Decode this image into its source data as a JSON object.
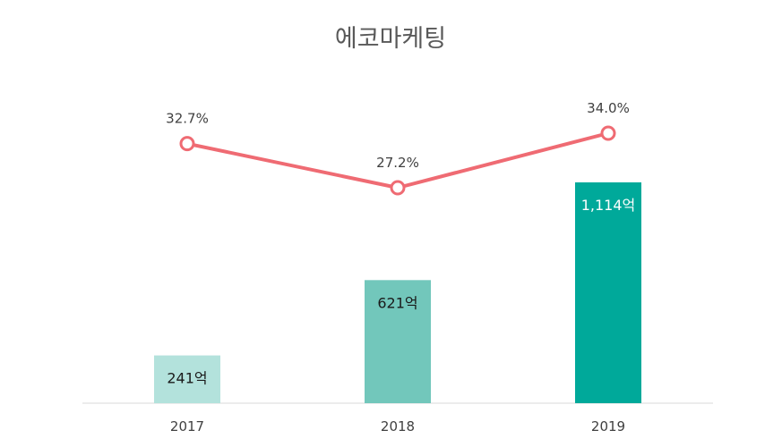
{
  "chart_data": {
    "type": "bar",
    "title": "에코마케팅",
    "categories": [
      "2017",
      "2018",
      "2019"
    ],
    "series": [
      {
        "type": "bar",
        "values": [
          241,
          621,
          1114
        ],
        "labels": [
          "241억",
          "621억",
          "1,114억"
        ],
        "colors": [
          "#b3e2dc",
          "#72c7bb",
          "#00a99a"
        ],
        "label_colors": [
          "#1a1a1a",
          "#1a1a1a",
          "#ffffff"
        ]
      },
      {
        "type": "line",
        "values": [
          32.7,
          27.2,
          34.0
        ],
        "labels": [
          "32.7%",
          "27.2%",
          "34.0%"
        ],
        "color": "#ef6b73"
      }
    ]
  }
}
